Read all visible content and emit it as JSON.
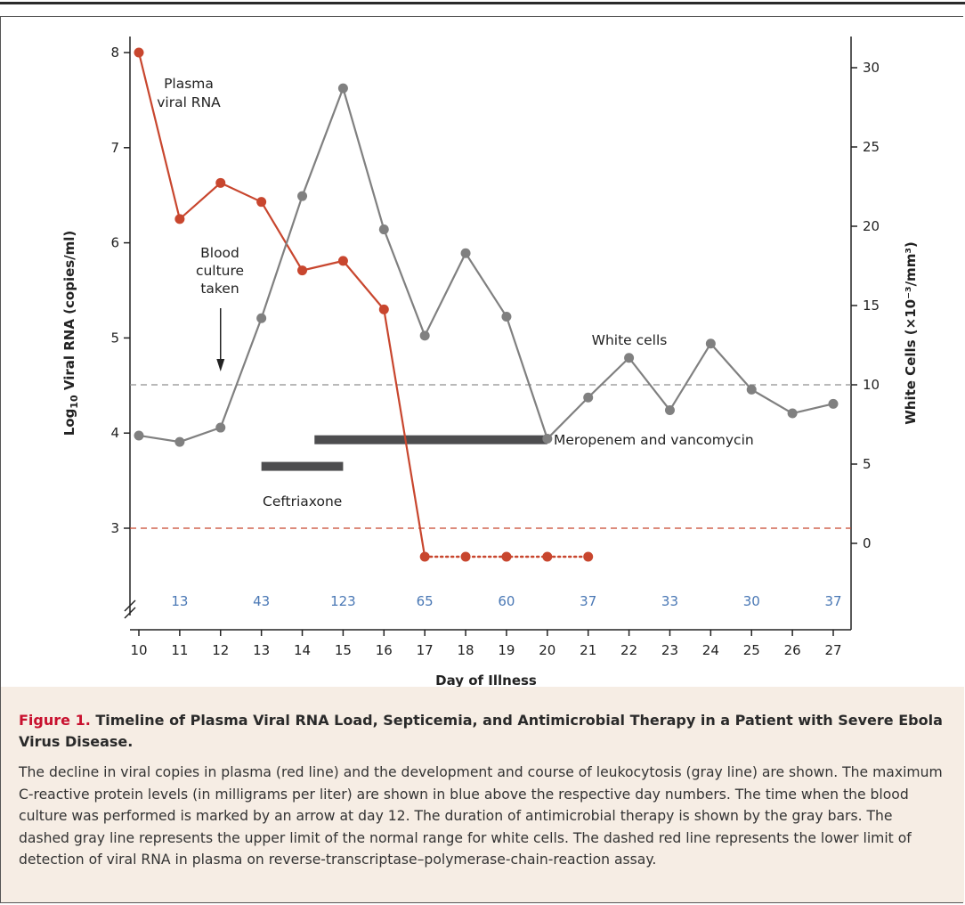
{
  "chart_data": {
    "type": "line",
    "xlabel": "Day of Illness",
    "ylabel_left": "Log10 Viral RNA (copies/ml)",
    "ylabel_left_parts": {
      "base": "Log",
      "sub": "10",
      "rest": " Viral RNA (copies/ml)"
    },
    "ylabel_right": "White Cells (×10⁻³/mm³)",
    "xlim": [
      10,
      27
    ],
    "ylim_left": [
      2.2,
      8
    ],
    "ylim_right": [
      0,
      30
    ],
    "x_ticks": [
      10,
      11,
      12,
      13,
      14,
      15,
      16,
      17,
      18,
      19,
      20,
      21,
      22,
      23,
      24,
      25,
      26,
      27
    ],
    "y_ticks_left": [
      3,
      4,
      5,
      6,
      7,
      8
    ],
    "y_ticks_right": [
      0,
      5,
      10,
      15,
      20,
      25,
      30
    ],
    "series": [
      {
        "name": "Plasma viral RNA",
        "axis": "left",
        "color": "#c8462e",
        "x": [
          10,
          11,
          12,
          13,
          14,
          15,
          16,
          17
        ],
        "y": [
          8.0,
          6.25,
          6.63,
          6.43,
          5.71,
          5.81,
          5.3,
          2.7
        ]
      },
      {
        "name": "Plasma viral RNA (below detection)",
        "axis": "left",
        "color": "#c8462e",
        "style": "dotted",
        "x": [
          17,
          18,
          19,
          20,
          21
        ],
        "y": [
          2.7,
          2.7,
          2.7,
          2.7,
          2.7
        ]
      },
      {
        "name": "White cells",
        "axis": "right",
        "color": "#808080",
        "x": [
          10,
          11,
          12,
          13,
          14,
          15,
          16,
          17,
          18,
          19,
          20,
          21,
          22,
          23,
          24,
          25,
          26,
          27
        ],
        "y": [
          6.8,
          6.4,
          7.3,
          14.2,
          21.9,
          28.7,
          19.8,
          13.1,
          18.3,
          14.3,
          6.6,
          9.2,
          11.7,
          8.4,
          12.6,
          9.7,
          8.2,
          8.8
        ]
      }
    ],
    "reference_lines": [
      {
        "axis": "right",
        "value": 10,
        "color": "#8f8f8f",
        "style": "dashed"
      },
      {
        "axis": "left",
        "value": 3,
        "color": "#c8462e",
        "style": "dashed"
      }
    ],
    "therapy_bars": [
      {
        "label": "Ceftriaxone",
        "start": 13,
        "end": 15,
        "y": 3.65
      },
      {
        "label": "Meropenem and vancomycin",
        "start": 14.3,
        "end": 20,
        "y": 3.93
      }
    ],
    "crp_values": [
      {
        "x": 11,
        "value": "13"
      },
      {
        "x": 13,
        "value": "43"
      },
      {
        "x": 15,
        "value": "123"
      },
      {
        "x": 17,
        "value": "65"
      },
      {
        "x": 19,
        "value": "60"
      },
      {
        "x": 21,
        "value": "37"
      },
      {
        "x": 23,
        "value": "33"
      },
      {
        "x": 25,
        "value": "30"
      },
      {
        "x": 27,
        "value": "37"
      }
    ],
    "annotations": {
      "plasma_label": [
        "Plasma",
        "viral RNA"
      ],
      "blood_culture_label": [
        "Blood",
        "culture",
        "taken"
      ],
      "blood_culture_day": 12,
      "white_cells_label": "White cells"
    },
    "colors": {
      "crp": "#4a78b5",
      "therapy_bar": "#4d4d4f",
      "axis": "#222222"
    }
  },
  "caption": {
    "label": "Figure 1.",
    "title": "Timeline of Plasma Viral RNA Load, Septicemia, and Antimicrobial Therapy in a Patient with Severe Ebola Virus Disease.",
    "body": "The decline in viral copies in plasma (red line) and the development and course of leukocytosis (gray line) are shown. The maximum C-reactive protein levels (in milligrams per liter) are shown in blue above the respective day numbers. The time when the blood culture was performed is marked by an arrow at day 12. The duration of antimicrobial therapy is shown by the gray bars. The dashed gray line represents the upper limit of the normal range for white cells. The dashed red line represents the lower limit of detection of viral RNA in plasma on reverse-transcriptase–polymerase-chain-reaction assay."
  }
}
